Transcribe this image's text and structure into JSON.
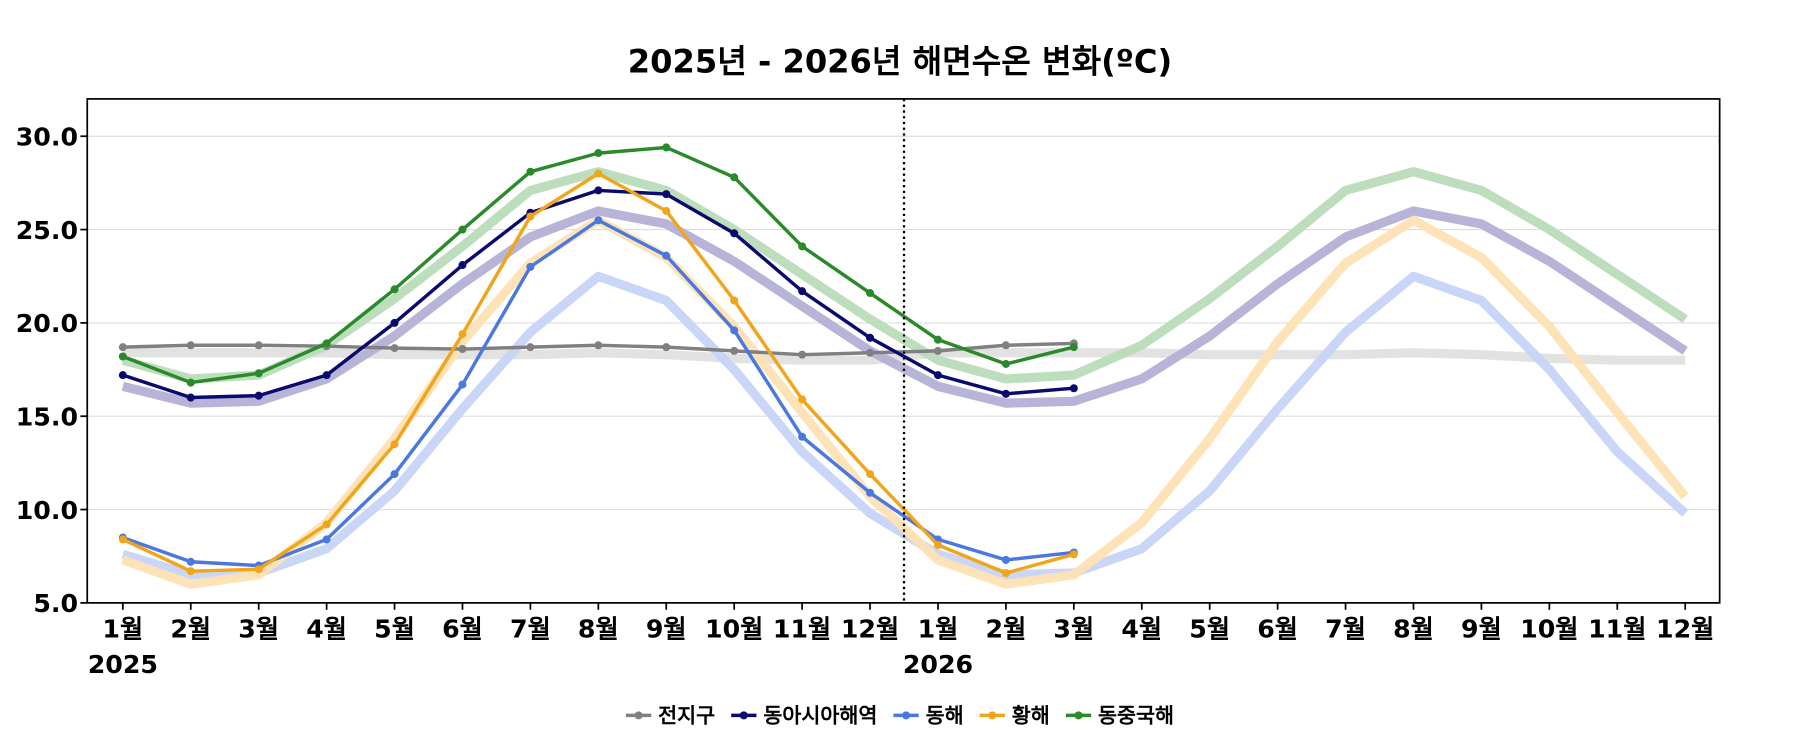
{
  "chart_data": {
    "type": "line",
    "title": "2025년 - 2026년 해면수온 변화(ºC)",
    "categories": [
      "1월",
      "2월",
      "3월",
      "4월",
      "5월",
      "6월",
      "7월",
      "8월",
      "9월",
      "10월",
      "11월",
      "12월",
      "1월",
      "2월",
      "3월",
      "4월",
      "5월",
      "6월",
      "7월",
      "8월",
      "9월",
      "10월",
      "11월",
      "12월"
    ],
    "years": [
      "2025",
      "2026"
    ],
    "ylim": [
      5,
      32
    ],
    "yticks": [
      {
        "value": 5,
        "label": "5.0"
      },
      {
        "value": 10,
        "label": "10.0"
      },
      {
        "value": 15,
        "label": "15.0"
      },
      {
        "value": 20,
        "label": "20.0"
      },
      {
        "value": 25,
        "label": "25.0"
      },
      {
        "value": 30,
        "label": "30.0"
      }
    ],
    "grid": true,
    "legend": "bottom",
    "series": [
      {
        "name": "전지구",
        "color": "#808080",
        "values": [
          18.7,
          18.8,
          18.8,
          18.75,
          18.65,
          18.6,
          18.7,
          18.8,
          18.7,
          18.5,
          18.3,
          18.4,
          18.5,
          18.8,
          18.9,
          null,
          null,
          null,
          null,
          null,
          null,
          null,
          null,
          null
        ]
      },
      {
        "name": "동아시아해역",
        "color": "#0a0a6e",
        "values": [
          17.2,
          16.0,
          16.1,
          17.2,
          20.0,
          23.1,
          25.9,
          27.1,
          26.9,
          24.8,
          21.7,
          19.2,
          17.2,
          16.2,
          16.5,
          null,
          null,
          null,
          null,
          null,
          null,
          null,
          null,
          null
        ]
      },
      {
        "name": "동해",
        "color": "#4a78e0",
        "values": [
          8.5,
          7.2,
          7.0,
          8.4,
          11.9,
          16.7,
          23.0,
          25.5,
          23.6,
          19.6,
          13.9,
          10.9,
          8.4,
          7.3,
          7.7,
          null,
          null,
          null,
          null,
          null,
          null,
          null,
          null,
          null
        ]
      },
      {
        "name": "황해",
        "color": "#f0a51a",
        "values": [
          8.4,
          6.7,
          6.8,
          9.2,
          13.5,
          19.4,
          25.7,
          28.0,
          26.0,
          21.2,
          15.9,
          11.9,
          8.1,
          6.6,
          7.6,
          null,
          null,
          null,
          null,
          null,
          null,
          null,
          null,
          null
        ]
      },
      {
        "name": "동중국해",
        "color": "#2a8a2a",
        "values": [
          18.2,
          16.8,
          17.3,
          18.9,
          21.8,
          25.0,
          28.1,
          29.1,
          29.4,
          27.8,
          24.1,
          21.6,
          19.1,
          17.8,
          18.7,
          null,
          null,
          null,
          null,
          null,
          null,
          null,
          null,
          null
        ]
      }
    ],
    "reference": [
      {
        "color": "#e0e0e0",
        "values": [
          18.4,
          18.4,
          18.4,
          18.4,
          18.3,
          18.3,
          18.3,
          18.4,
          18.3,
          18.1,
          18.0,
          18.0,
          18.4,
          18.4,
          18.4,
          18.4,
          18.3,
          18.3,
          18.3,
          18.4,
          18.3,
          18.1,
          18.0,
          18.0
        ]
      },
      {
        "color": "#b3b0d6",
        "values": [
          16.6,
          15.7,
          15.8,
          17.0,
          19.3,
          22.1,
          24.6,
          26.0,
          25.3,
          23.3,
          20.9,
          18.5,
          16.6,
          15.7,
          15.8,
          17.0,
          19.3,
          22.1,
          24.6,
          26.0,
          25.3,
          23.3,
          20.9,
          18.5
        ]
      },
      {
        "color": "#c6d4f7",
        "values": [
          7.6,
          6.5,
          6.6,
          7.9,
          11.0,
          15.4,
          19.5,
          22.5,
          21.2,
          17.5,
          13.1,
          9.8,
          7.6,
          6.5,
          6.6,
          7.9,
          11.0,
          15.4,
          19.5,
          22.5,
          21.2,
          17.5,
          13.1,
          9.8
        ]
      },
      {
        "color": "#fde2b3",
        "values": [
          7.3,
          6.0,
          6.5,
          9.3,
          13.8,
          19.0,
          23.2,
          25.5,
          23.5,
          19.8,
          15.2,
          10.7,
          7.3,
          6.0,
          6.5,
          9.3,
          13.8,
          19.0,
          23.2,
          25.5,
          23.5,
          19.8,
          15.2,
          10.7
        ]
      },
      {
        "color": "#b8dcb8",
        "values": [
          18.0,
          17.0,
          17.2,
          18.8,
          21.3,
          24.1,
          27.1,
          28.1,
          27.1,
          25.0,
          22.6,
          20.2,
          18.0,
          17.0,
          17.2,
          18.8,
          21.3,
          24.1,
          27.1,
          28.1,
          27.1,
          25.0,
          22.6,
          20.2
        ]
      }
    ]
  }
}
